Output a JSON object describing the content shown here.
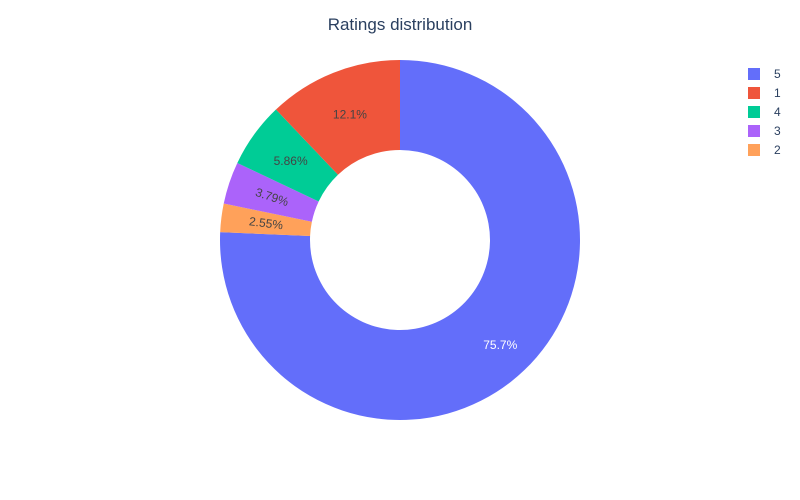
{
  "chart_data": {
    "type": "pie",
    "hole": 0.5,
    "title": "Ratings distribution",
    "slices": [
      {
        "label": "5",
        "value": 75.7,
        "text": "75.7%",
        "color": "#636efa",
        "text_color": "#ffffff"
      },
      {
        "label": "2",
        "value": 2.55,
        "text": "2.55%",
        "color": "#ffa15a",
        "text_color": "#444444"
      },
      {
        "label": "3",
        "value": 3.79,
        "text": "3.79%",
        "color": "#ab63fa",
        "text_color": "#444444"
      },
      {
        "label": "4",
        "value": 5.86,
        "text": "5.86%",
        "color": "#00cc96",
        "text_color": "#444444"
      },
      {
        "label": "1",
        "value": 12.1,
        "text": "12.1%",
        "color": "#ef553b",
        "text_color": "#444444"
      }
    ],
    "legend": {
      "placement": "top-right",
      "entries": [
        {
          "label": "5",
          "color": "#636efa"
        },
        {
          "label": "1",
          "color": "#ef553b"
        },
        {
          "label": "4",
          "color": "#00cc96"
        },
        {
          "label": "3",
          "color": "#ab63fa"
        },
        {
          "label": "2",
          "color": "#ffa15a"
        }
      ]
    }
  }
}
